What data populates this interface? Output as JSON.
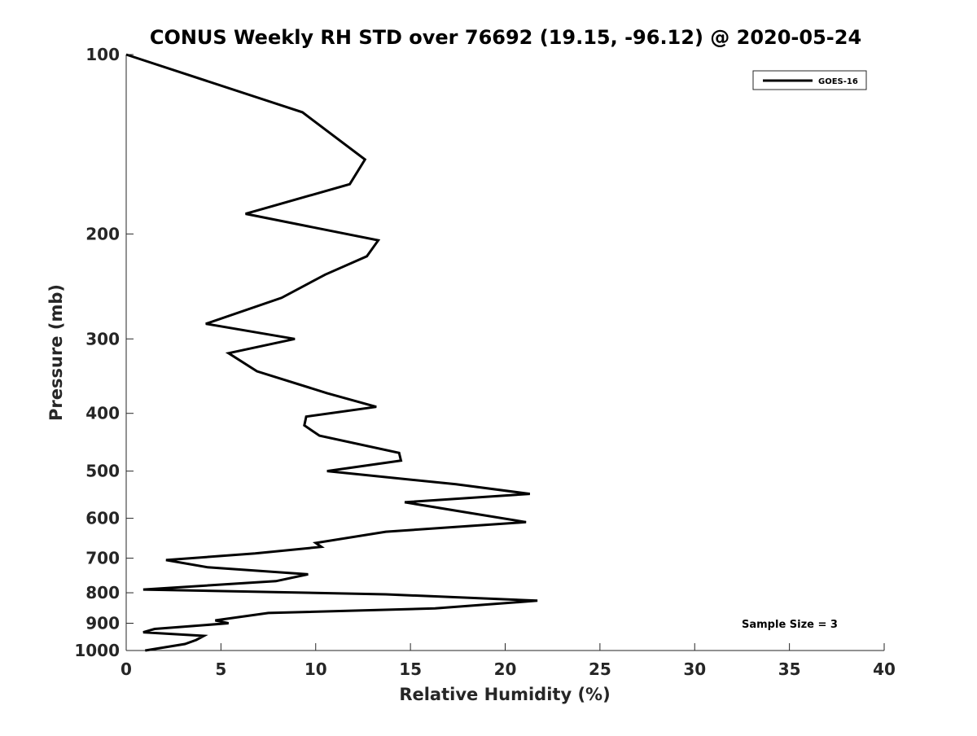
{
  "chart_data": {
    "type": "line",
    "title": "CONUS Weekly RH STD over 76692 (19.15, -96.12) @ 2020-05-24",
    "xlabel": "Relative Humidity (%)",
    "ylabel": "Pressure (mb)",
    "xlim": [
      0,
      40
    ],
    "ylim": [
      100,
      1000
    ],
    "y_scale": "log",
    "y_reversed": true,
    "grid": false,
    "legend_position": "top-right",
    "x_ticks": [
      0,
      5,
      10,
      15,
      20,
      25,
      30,
      35,
      40
    ],
    "x_tick_labels": [
      "0",
      "5",
      "10",
      "15",
      "20",
      "25",
      "30",
      "35",
      "40"
    ],
    "y_ticks": [
      100,
      200,
      300,
      400,
      500,
      600,
      700,
      800,
      900,
      1000
    ],
    "y_tick_labels": [
      "100",
      "200",
      "300",
      "400",
      "500",
      "600",
      "700",
      "800",
      "900",
      "1000"
    ],
    "series": [
      {
        "name": "GOES-16",
        "color": "#000000",
        "x": [
          0.0,
          9.3,
          12.6,
          11.8,
          6.3,
          13.3,
          12.7,
          10.5,
          8.2,
          4.2,
          8.9,
          5.4,
          6.9,
          10.6,
          13.2,
          9.5,
          9.4,
          10.2,
          14.4,
          14.5,
          10.6,
          17.4,
          21.3,
          14.7,
          17.6,
          21.1,
          13.7,
          10.0,
          10.3,
          6.8,
          2.1,
          4.3,
          9.6,
          7.9,
          0.9,
          13.7,
          21.7,
          16.3,
          7.5,
          4.7,
          5.4,
          1.5,
          0.9,
          4.1,
          3.7,
          3.1,
          1.0
        ],
        "y": [
          100,
          125,
          150,
          165,
          185,
          205,
          218,
          234,
          256,
          283,
          300,
          317,
          340,
          370,
          390,
          405,
          419,
          436,
          466,
          480,
          500,
          526,
          546,
          564,
          584,
          609,
          632,
          660,
          670,
          687,
          705,
          725,
          745,
          765,
          790,
          805,
          825,
          850,
          865,
          890,
          900,
          920,
          932,
          945,
          960,
          975,
          1000
        ]
      }
    ],
    "annotations": [
      "Sample Size = 3"
    ]
  }
}
